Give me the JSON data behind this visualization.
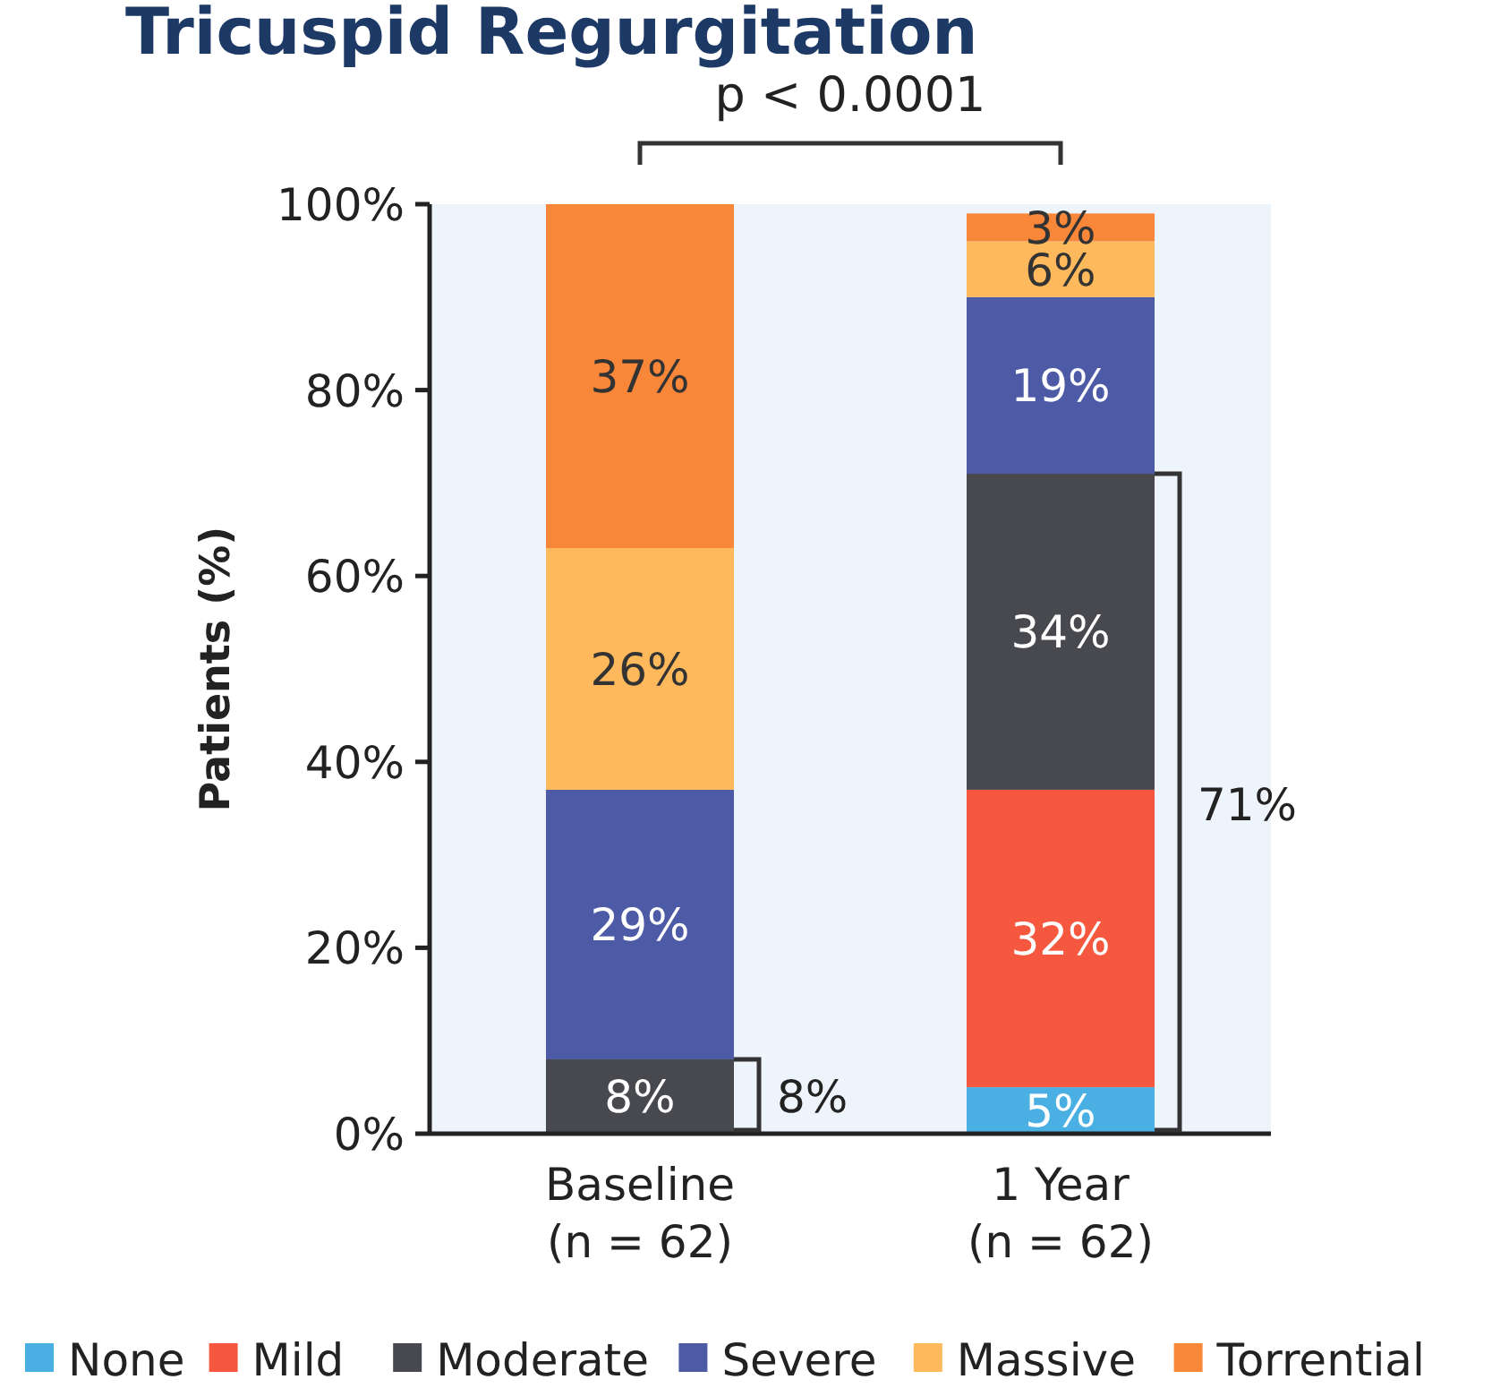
{
  "chart_data": {
    "type": "bar",
    "title": "Tricuspid Regurgitation",
    "ylabel": "Patients (%)",
    "stacked": true,
    "categories": [
      "Baseline\n(n = 62)",
      "1 Year\n(n = 62)"
    ],
    "series": [
      {
        "name": "None",
        "color": "#4ab0e4",
        "values": [
          0,
          5
        ],
        "value_labels": [
          null,
          "5%"
        ]
      },
      {
        "name": "Mild",
        "color": "#f5583e",
        "values": [
          0,
          32
        ],
        "value_labels": [
          null,
          "32%"
        ]
      },
      {
        "name": "Moderate",
        "color": "#48494e",
        "values": [
          8,
          34
        ],
        "value_labels": [
          "8%",
          "34%"
        ]
      },
      {
        "name": "Severe",
        "color": "#4d5aa6",
        "values": [
          29,
          19
        ],
        "value_labels": [
          "29%",
          "19%"
        ]
      },
      {
        "name": "Massive",
        "color": "#fdb95b",
        "values": [
          26,
          6
        ],
        "value_labels": [
          "26%",
          "6%"
        ]
      },
      {
        "name": "Torrential",
        "color": "#f8873a",
        "values": [
          37,
          3
        ],
        "value_labels": [
          "37%",
          "3%"
        ]
      }
    ],
    "ylim": [
      0,
      100
    ],
    "yticks": [
      {
        "value": 0,
        "label": "0%"
      },
      {
        "value": 20,
        "label": "20%"
      },
      {
        "value": 40,
        "label": "40%"
      },
      {
        "value": 60,
        "label": "60%"
      },
      {
        "value": 80,
        "label": "80%"
      },
      {
        "value": 100,
        "label": "100%"
      }
    ],
    "grid": false,
    "legend": "bottom",
    "annotations": [
      "p < 0.0001",
      "8%",
      "71%"
    ]
  }
}
